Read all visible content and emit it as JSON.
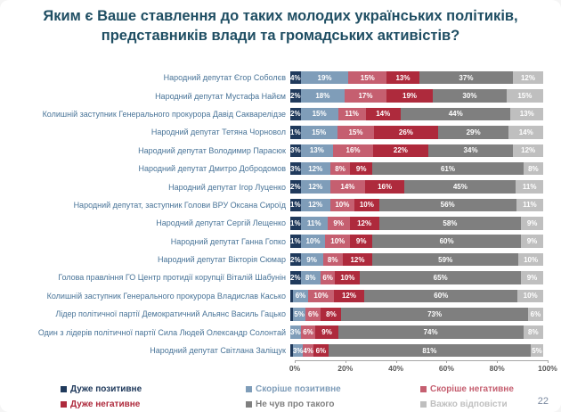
{
  "title": "Яким є Ваше ставлення до таких молодих українських політиків, представників влади та громадських активістів?",
  "page_number": "22",
  "chart_data": {
    "type": "bar",
    "subtype": "horizontal-stacked-100",
    "title": "Яким є Ваше ставлення до таких молодих українських політиків, представників влади та громадських активістів?",
    "xlabel": "",
    "ylabel": "",
    "xlim": [
      0,
      100
    ],
    "x_axis_ticks": [
      "0%",
      "20%",
      "40%",
      "60%",
      "80%",
      "100%"
    ],
    "grid": false,
    "legend_position": "bottom",
    "series_names": [
      "Дуже позитивне",
      "Скоріше позитивне",
      "Скоріше негативне",
      "Дуже негативне",
      "Не чув про такого",
      "Важко відповісти"
    ],
    "series_colors": [
      "#203a5c",
      "#7f9db9",
      "#c55f70",
      "#ae2a3c",
      "#7f7f7f",
      "#bfbfbf"
    ],
    "legend": [
      {
        "label": "Дуже позитивне",
        "color": "#203a5c",
        "row": 0,
        "col": 0
      },
      {
        "label": "Скоріше позитивне",
        "color": "#7f9db9",
        "row": 0,
        "col": 1
      },
      {
        "label": "Скоріше негативне",
        "color": "#c55f70",
        "row": 0,
        "col": 2
      },
      {
        "label": "Дуже негативне",
        "color": "#ae2a3c",
        "row": 1,
        "col": 0
      },
      {
        "label": "Не чув про такого",
        "color": "#7f7f7f",
        "row": 1,
        "col": 1
      },
      {
        "label": "Важко відповісти",
        "color": "#bfbfbf",
        "row": 1,
        "col": 2
      }
    ],
    "categories": [
      "Народний депутат Єгор Соболєв",
      "Народний депутат Мустафа Найєм",
      "Колишній заступник Генерального прокурора Давід Сакварелідзе",
      "Народний депутат Тетяна Чорновол",
      "Народний депутат Володимир Парасюк",
      "Народний депутат Дмитро Добродомов",
      "Народний депутат Ігор Луценко",
      "Народний депутат, заступник Голови ВРУ Оксана Сироїд",
      "Народний депутат Сергій Лещенко",
      "Народний депутат Ганна Гопко",
      "Народний депутат Вікторія Сюмар",
      "Голова правління ГО Центр протидії корупції Віталій Шабунін",
      "Колишній заступник Генерального прокурора Владислав Касько",
      "Лідер політичної партії Демократичний Альянс Василь Гацько",
      "Один з лідерів політичної партії Сила Людей Олександр Солонтай",
      "Народний депутат Світлана Заліщук"
    ],
    "rows": [
      {
        "category": "Народний депутат Єгор Соболєв",
        "values": [
          4,
          19,
          15,
          13,
          37,
          12
        ],
        "labels": [
          "4%",
          "19%",
          "15%",
          "13%",
          "37%",
          "12%"
        ]
      },
      {
        "category": "Народний депутат Мустафа Найєм",
        "values": [
          2,
          18,
          17,
          19,
          30,
          15
        ],
        "labels": [
          "2%",
          "18%",
          "17%",
          "19%",
          "30%",
          "15%"
        ]
      },
      {
        "category": "Колишній заступник Генерального прокурора Давід Сакварелідзе",
        "values": [
          2,
          15,
          11,
          14,
          44,
          13
        ],
        "labels": [
          "2%",
          "15%",
          "11%",
          "14%",
          "44%",
          "13%"
        ]
      },
      {
        "category": "Народний депутат Тетяна Чорновол",
        "values": [
          1,
          15,
          15,
          26,
          29,
          14
        ],
        "labels": [
          "1%",
          "15%",
          "15%",
          "26%",
          "29%",
          "14%"
        ]
      },
      {
        "category": "Народний депутат Володимир Парасюк",
        "values": [
          3,
          13,
          16,
          22,
          34,
          12
        ],
        "labels": [
          "3%",
          "13%",
          "16%",
          "22%",
          "34%",
          "12%"
        ]
      },
      {
        "category": "Народний депутат Дмитро Добродомов",
        "values": [
          3,
          12,
          8,
          9,
          61,
          8
        ],
        "labels": [
          "3%",
          "12%",
          "8%",
          "9%",
          "61%",
          "8%"
        ]
      },
      {
        "category": "Народний депутат Ігор Луценко",
        "values": [
          2,
          12,
          14,
          16,
          45,
          11
        ],
        "labels": [
          "2%",
          "12%",
          "14%",
          "16%",
          "45%",
          "11%"
        ]
      },
      {
        "category": "Народний депутат, заступник Голови ВРУ Оксана Сироїд",
        "values": [
          1,
          12,
          10,
          10,
          56,
          11
        ],
        "labels": [
          "1%",
          "12%",
          "10%",
          "10%",
          "56%",
          "11%"
        ]
      },
      {
        "category": "Народний депутат Сергій Лещенко",
        "values": [
          1,
          11,
          9,
          12,
          58,
          9
        ],
        "labels": [
          "1%",
          "11%",
          "9%",
          "12%",
          "58%",
          "9%"
        ]
      },
      {
        "category": "Народний депутат Ганна Гопко",
        "values": [
          1,
          10,
          10,
          9,
          60,
          9
        ],
        "labels": [
          "1%",
          "10%",
          "10%",
          "9%",
          "60%",
          "9%"
        ]
      },
      {
        "category": "Народний депутат Вікторія Сюмар",
        "values": [
          2,
          9,
          8,
          12,
          59,
          10
        ],
        "labels": [
          "2%",
          "9%",
          "8%",
          "12%",
          "59%",
          "10%"
        ]
      },
      {
        "category": "Голова правління ГО Центр протидії корупції Віталій Шабунін",
        "values": [
          2,
          8,
          6,
          10,
          65,
          9
        ],
        "labels": [
          "2%",
          "8%",
          "6%",
          "10%",
          "65%",
          "9%"
        ]
      },
      {
        "category": "Колишній заступник Генерального прокурора Владислав Касько",
        "values": [
          1,
          6,
          10,
          12,
          60,
          10
        ],
        "labels": [
          "",
          "6%",
          "10%",
          "12%",
          "60%",
          "10%"
        ]
      },
      {
        "category": "Лідер політичної партії Демократичний Альянс Василь Гацько",
        "values": [
          1,
          5,
          6,
          8,
          73,
          6
        ],
        "labels": [
          "",
          "5%",
          "6%",
          "8%",
          "73%",
          "6%"
        ]
      },
      {
        "category": "Один з лідерів політичної партії Сила Людей Олександр Солонтай",
        "values": [
          0,
          3,
          6,
          9,
          74,
          8
        ],
        "labels": [
          "",
          "3%",
          "6%",
          "9%",
          "74%",
          "8%"
        ]
      },
      {
        "category": "Народний депутат Світлана Заліщук",
        "values": [
          1,
          3,
          4,
          6,
          81,
          5
        ],
        "labels": [
          "",
          "3%",
          "4%",
          "6%",
          "81%",
          "5%"
        ]
      }
    ]
  }
}
